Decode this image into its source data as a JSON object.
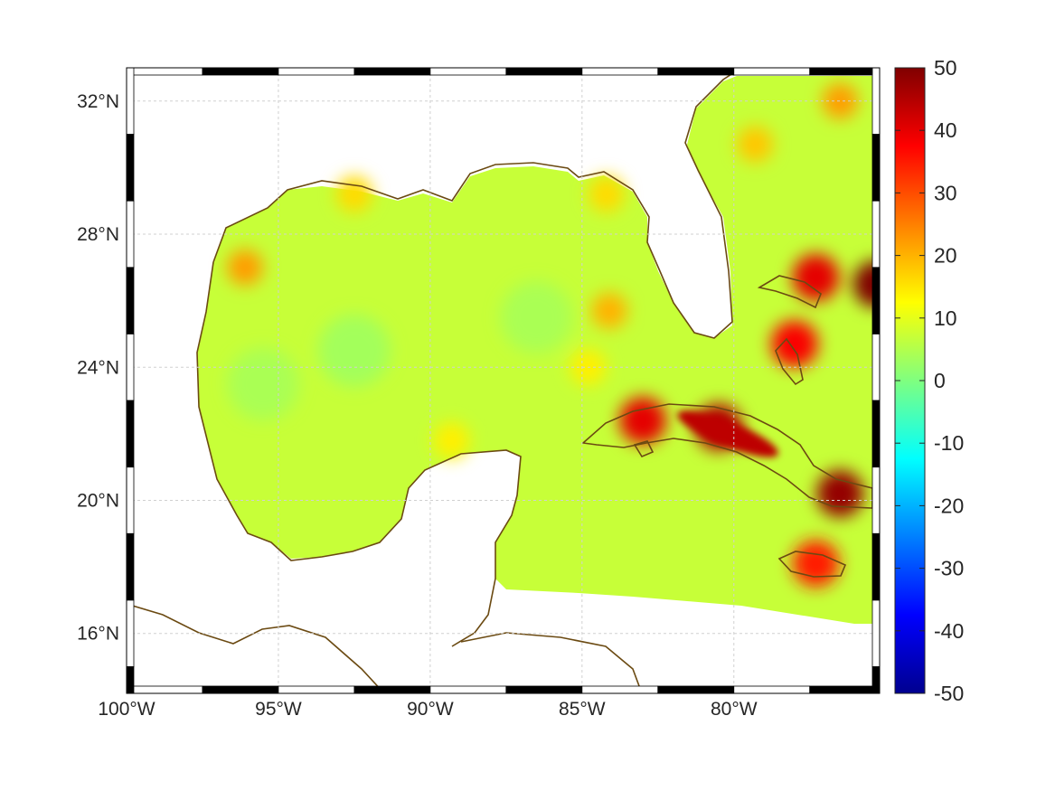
{
  "map": {
    "type": "geographic field map",
    "region": "Gulf of Mexico and western Caribbean",
    "lon_range": [
      -100,
      -75.2
    ],
    "lat_range": [
      14.2,
      33
    ],
    "grid": true,
    "frame_style": "alternating black/white border"
  },
  "axes": {
    "x_ticks": [
      {
        "value": -100,
        "label": "100°W"
      },
      {
        "value": -95,
        "label": "95°W"
      },
      {
        "value": -90,
        "label": "90°W"
      },
      {
        "value": -85,
        "label": "85°W"
      },
      {
        "value": -80,
        "label": "80°W"
      }
    ],
    "y_ticks": [
      {
        "value": 32,
        "label": "32°N"
      },
      {
        "value": 28,
        "label": "28°N"
      },
      {
        "value": 24,
        "label": "24°N"
      },
      {
        "value": 20,
        "label": "20°N"
      },
      {
        "value": 16,
        "label": "16°N"
      }
    ]
  },
  "colorbar": {
    "colormap": "jet",
    "min": -50,
    "max": 50,
    "ticks": [
      {
        "value": 50,
        "label": "50"
      },
      {
        "value": 40,
        "label": "40"
      },
      {
        "value": 30,
        "label": "30"
      },
      {
        "value": 20,
        "label": "20"
      },
      {
        "value": 10,
        "label": "10"
      },
      {
        "value": 0,
        "label": "0"
      },
      {
        "value": -10,
        "label": "-10"
      },
      {
        "value": -20,
        "label": "-20"
      },
      {
        "value": -30,
        "label": "-30"
      },
      {
        "value": -40,
        "label": "-40"
      },
      {
        "value": -50,
        "label": "-50"
      }
    ]
  },
  "field": {
    "background_value": 7,
    "hotspots": [
      {
        "name": "central-cuba",
        "lon": -80.5,
        "lat": 22.2,
        "value": 45
      },
      {
        "name": "western-cuba",
        "lon": -83.0,
        "lat": 22.4,
        "value": 40
      },
      {
        "name": "eastern-cuba",
        "lon": -76.5,
        "lat": 20.2,
        "value": 48
      },
      {
        "name": "east-edge",
        "lon": -75.3,
        "lat": 26.5,
        "value": 50
      },
      {
        "name": "andros",
        "lon": -78.0,
        "lat": 24.7,
        "value": 38
      },
      {
        "name": "grand-bahama",
        "lon": -77.3,
        "lat": 26.7,
        "value": 40
      },
      {
        "name": "jamaica",
        "lon": -77.3,
        "lat": 18.1,
        "value": 35
      },
      {
        "name": "nw-atlantic",
        "lon": -76.5,
        "lat": 32.0,
        "value": 22
      },
      {
        "name": "ne-gulf",
        "lon": -84.2,
        "lat": 29.2,
        "value": 16
      },
      {
        "name": "la-shelf",
        "lon": -92.5,
        "lat": 29.2,
        "value": 16
      },
      {
        "name": "texas-eddy",
        "lon": -96.1,
        "lat": 27.0,
        "value": 22
      },
      {
        "name": "campeche",
        "lon": -89.3,
        "lat": 21.8,
        "value": 14
      },
      {
        "name": "keys-south",
        "lon": -84.8,
        "lat": 24.0,
        "value": 14
      },
      {
        "name": "gulf-spot",
        "lon": -84.1,
        "lat": 25.7,
        "value": 20
      },
      {
        "name": "ga-coast",
        "lon": -79.3,
        "lat": 30.7,
        "value": 18
      }
    ],
    "cool_spots": [
      {
        "name": "central-gulf",
        "lon": -92.5,
        "lat": 24.5,
        "value": 2
      },
      {
        "name": "west-gulf",
        "lon": -95.5,
        "lat": 23.5,
        "value": 3
      },
      {
        "name": "se-gulf",
        "lon": -86.5,
        "lat": 25.5,
        "value": 3
      }
    ]
  }
}
